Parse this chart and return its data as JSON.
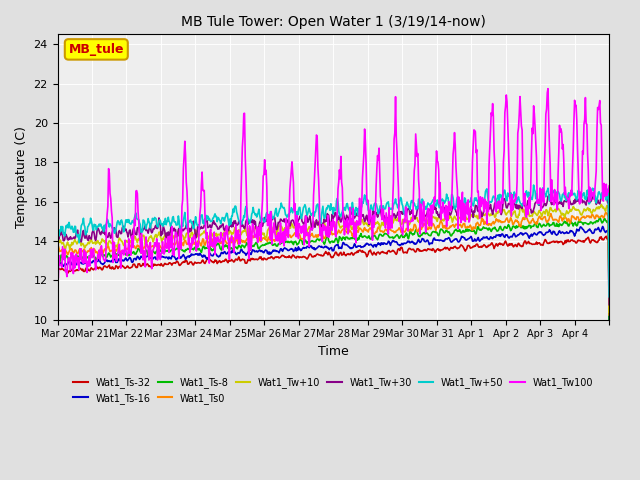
{
  "title": "MB Tule Tower: Open Water 1 (3/19/14-now)",
  "xlabel": "Time",
  "ylabel": "Temperature (C)",
  "ylim": [
    10,
    24.5
  ],
  "legend_label": "MB_tule",
  "x_tick_labels": [
    "Mar 20",
    "Mar 21",
    "Mar 22",
    "Mar 23",
    "Mar 24",
    "Mar 25",
    "Mar 26",
    "Mar 27",
    "Mar 28",
    "Mar 29",
    "Mar 30",
    "Mar 31",
    "Apr 1",
    "Apr 2",
    "Apr 3",
    "Apr 4",
    ""
  ],
  "y_tick_labels": [
    "10",
    "12",
    "14",
    "16",
    "18",
    "20",
    "22",
    "24"
  ],
  "y_ticks": [
    10,
    12,
    14,
    16,
    18,
    20,
    22,
    24
  ],
  "series_order": [
    "Wat1_Ts-32",
    "Wat1_Ts-16",
    "Wat1_Ts-8",
    "Wat1_Ts0",
    "Wat1_Tw+10",
    "Wat1_Tw+30",
    "Wat1_Tw+50",
    "Wat1_Tw100"
  ],
  "series": {
    "Wat1_Ts-32": {
      "color": "#cc0000",
      "lw": 1.2
    },
    "Wat1_Ts-16": {
      "color": "#0000cc",
      "lw": 1.2
    },
    "Wat1_Ts-8": {
      "color": "#00bb00",
      "lw": 1.2
    },
    "Wat1_Ts0": {
      "color": "#ff8800",
      "lw": 1.2
    },
    "Wat1_Tw+10": {
      "color": "#cccc00",
      "lw": 1.2
    },
    "Wat1_Tw+30": {
      "color": "#880088",
      "lw": 1.2
    },
    "Wat1_Tw+50": {
      "color": "#00cccc",
      "lw": 1.2
    },
    "Wat1_Tw100": {
      "color": "#ff00ff",
      "lw": 1.2
    }
  },
  "bg_color": "#e0e0e0",
  "plot_bg": "#eeeeee"
}
